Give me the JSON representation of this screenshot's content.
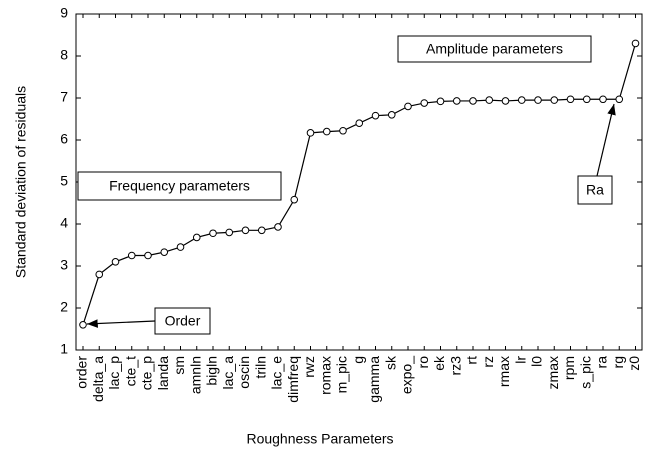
{
  "chart_data": {
    "type": "line",
    "x_label": "Roughness Parameters",
    "y_label": "Standard deviation of residuals",
    "categories": [
      "order",
      "delta_a",
      "lac_p",
      "cte_t",
      "cte_p",
      "landa",
      "sm",
      "amnln",
      "bigln",
      "lac_a",
      "oscin",
      "triln",
      "lac_e",
      "dimfreq",
      "rwz",
      "romax",
      "m_pic",
      "g",
      "gamma",
      "sk",
      "expo_",
      "ro",
      "ek",
      "rz3",
      "rt",
      "rz",
      "rmax",
      "lr",
      "l0",
      "zmax",
      "rpm",
      "s_pic",
      "ra",
      "rg",
      "z0"
    ],
    "values": [
      1.6,
      2.8,
      3.1,
      3.25,
      3.25,
      3.33,
      3.45,
      3.68,
      3.78,
      3.8,
      3.85,
      3.85,
      3.93,
      4.58,
      6.17,
      6.2,
      6.22,
      6.4,
      6.58,
      6.6,
      6.8,
      6.88,
      6.92,
      6.93,
      6.93,
      6.95,
      6.93,
      6.95,
      6.95,
      6.95,
      6.97,
      6.97,
      6.97,
      6.97,
      8.3
    ],
    "color": "#000000",
    "ylim": [
      1,
      9
    ],
    "yticks": [
      1,
      2,
      3,
      4,
      5,
      6,
      7,
      8,
      9
    ],
    "grid": false,
    "annotations": [
      "Amplitude parameters",
      "Frequency parameters",
      "Order",
      "Ra"
    ]
  }
}
